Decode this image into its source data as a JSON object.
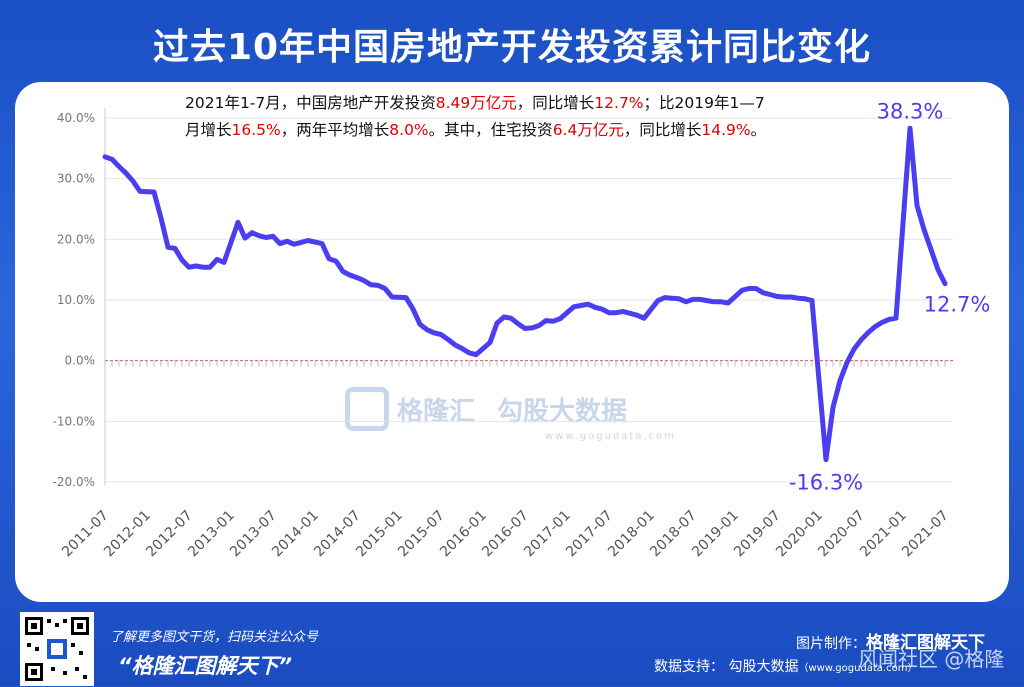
{
  "title": "过去10年中国房地产开发投资累计同比变化",
  "note": {
    "t1": "2021年1-7月，中国房地产开发投资",
    "r1": "8.49万亿元",
    "t2": "，同比增长",
    "r2": "12.7%",
    "t3": "；比2019年1—7",
    "t4": "月增长",
    "r3": "16.5%",
    "t5": "，两年平均增长",
    "r4": "8.0%",
    "t6": "。其中，住宅投资",
    "r5": "6.4万亿元",
    "t7": "，同比增长",
    "r6": "14.9%",
    "t8": "。"
  },
  "colors": {
    "line": "#4a3ef0",
    "note_red": "#e00000",
    "zero_line": "#e05050",
    "tick": "#777777"
  },
  "chart_data": {
    "type": "line",
    "title": "过去10年中国房地产开发投资累计同比变化",
    "xlabel": "",
    "ylabel": "",
    "ylim": [
      -20,
      40
    ],
    "yticks": [
      "40.0%",
      "30.0%",
      "20.0%",
      "10.0%",
      "0.0%",
      "-10.0%",
      "-20.0%"
    ],
    "xticks": [
      "2011-07",
      "2012-01",
      "2012-07",
      "2013-01",
      "2013-07",
      "2014-01",
      "2014-07",
      "2015-01",
      "2015-07",
      "2016-01",
      "2016-07",
      "2017-01",
      "2017-07",
      "2018-01",
      "2018-07",
      "2019-01",
      "2019-07",
      "2020-01",
      "2020-07",
      "2021-01",
      "2021-07"
    ],
    "grid": true,
    "annotations": [
      {
        "label": "38.3%",
        "x": "2021-02",
        "y": 38.3
      },
      {
        "label": "-16.3%",
        "x": "2020-02",
        "y": -16.3
      },
      {
        "label": "12.7%",
        "x": "2021-07",
        "y": 12.7
      }
    ],
    "series": [
      {
        "x": [
          "2011-07",
          "2011-08",
          "2011-09",
          "2011-10",
          "2011-11",
          "2011-12",
          "2012-02",
          "2012-03",
          "2012-04",
          "2012-05",
          "2012-06",
          "2012-07",
          "2012-08",
          "2012-09",
          "2012-10",
          "2012-11",
          "2012-12",
          "2013-02",
          "2013-03",
          "2013-04",
          "2013-05",
          "2013-06",
          "2013-07",
          "2013-08",
          "2013-09",
          "2013-10",
          "2013-11",
          "2013-12",
          "2014-02",
          "2014-03",
          "2014-04",
          "2014-05",
          "2014-06",
          "2014-07",
          "2014-08",
          "2014-09",
          "2014-10",
          "2014-11",
          "2014-12",
          "2015-02",
          "2015-03",
          "2015-04",
          "2015-05",
          "2015-06",
          "2015-07",
          "2015-08",
          "2015-09",
          "2015-10",
          "2015-11",
          "2015-12",
          "2016-02",
          "2016-03",
          "2016-04",
          "2016-05",
          "2016-06",
          "2016-07",
          "2016-08",
          "2016-09",
          "2016-10",
          "2016-11",
          "2016-12",
          "2017-02",
          "2017-03",
          "2017-04",
          "2017-05",
          "2017-06",
          "2017-07",
          "2017-08",
          "2017-09",
          "2017-10",
          "2017-11",
          "2017-12",
          "2018-02",
          "2018-03",
          "2018-04",
          "2018-05",
          "2018-06",
          "2018-07",
          "2018-08",
          "2018-09",
          "2018-10",
          "2018-11",
          "2018-12",
          "2019-02",
          "2019-03",
          "2019-04",
          "2019-05",
          "2019-06",
          "2019-07",
          "2019-08",
          "2019-09",
          "2019-10",
          "2019-11",
          "2019-12",
          "2020-02",
          "2020-03",
          "2020-04",
          "2020-05",
          "2020-06",
          "2020-07",
          "2020-08",
          "2020-09",
          "2020-10",
          "2020-11",
          "2020-12",
          "2021-02",
          "2021-03",
          "2021-04",
          "2021-05",
          "2021-06",
          "2021-07"
        ],
        "values": [
          33.6,
          33.2,
          32.0,
          30.9,
          29.6,
          27.9,
          27.8,
          23.5,
          18.7,
          18.5,
          16.6,
          15.4,
          15.6,
          15.4,
          15.4,
          16.7,
          16.2,
          22.8,
          20.2,
          21.1,
          20.6,
          20.3,
          20.5,
          19.3,
          19.7,
          19.2,
          19.5,
          19.8,
          19.3,
          16.8,
          16.4,
          14.7,
          14.1,
          13.7,
          13.2,
          12.5,
          12.4,
          11.9,
          10.5,
          10.4,
          8.5,
          6.0,
          5.1,
          4.6,
          4.3,
          3.5,
          2.6,
          2.0,
          1.3,
          1.0,
          3.0,
          6.2,
          7.2,
          7.0,
          6.1,
          5.3,
          5.4,
          5.8,
          6.6,
          6.5,
          6.9,
          8.9,
          9.1,
          9.3,
          8.8,
          8.5,
          7.9,
          7.9,
          8.1,
          7.8,
          7.5,
          7.0,
          9.9,
          10.4,
          10.3,
          10.2,
          9.7,
          10.1,
          10.1,
          9.9,
          9.7,
          9.7,
          9.5,
          11.6,
          11.9,
          11.9,
          11.2,
          10.9,
          10.6,
          10.5,
          10.5,
          10.3,
          10.2,
          9.9,
          -16.3,
          -7.7,
          -3.3,
          -0.3,
          1.9,
          3.4,
          4.6,
          5.6,
          6.3,
          6.8,
          7.0,
          38.3,
          25.6,
          21.6,
          18.3,
          15.0,
          12.7
        ]
      }
    ]
  },
  "footer": {
    "line1": "了解更多图文干货，扫码关注公众号",
    "line2": "“格隆汇图解天下”",
    "credit_label": "图片制作：",
    "credit_name": "格隆汇图解天下",
    "source_label": "数据支持：  勾股大数据",
    "source_url": "（www.gogudata.com）",
    "watermark": "风闻社区 @格隆"
  },
  "logo": {
    "brand1": "格隆汇",
    "brand2": "勾股大数据",
    "site": "www.gogudata.com"
  }
}
